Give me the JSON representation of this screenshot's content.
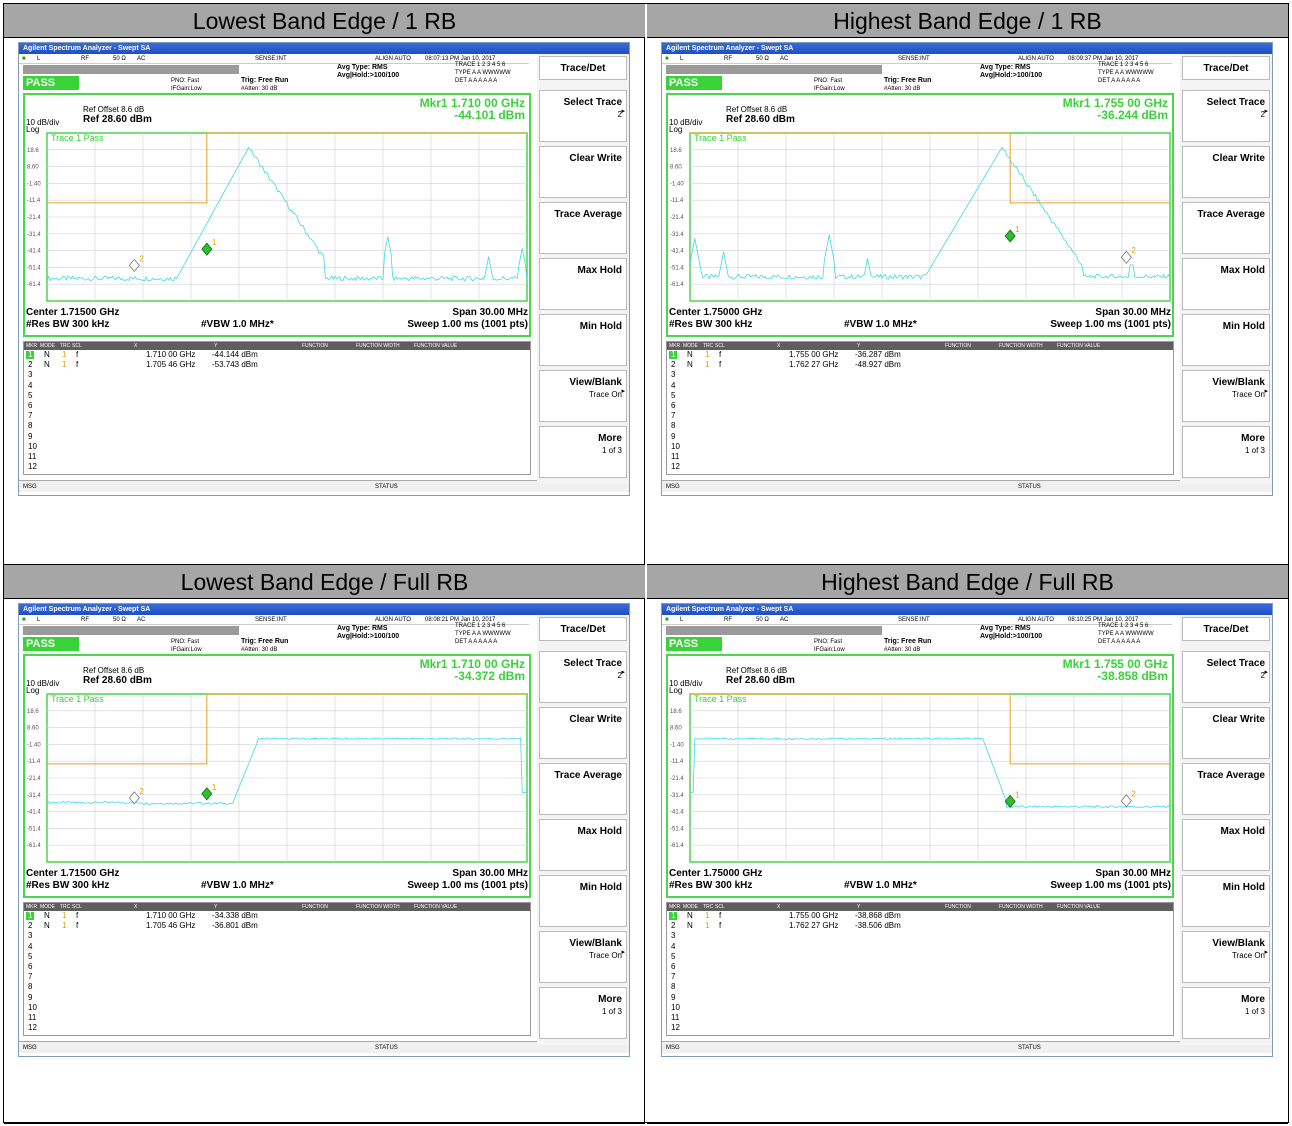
{
  "panels": [
    {
      "header": "Lowest Band Edge / 1 RB",
      "window_title": "Agilent Spectrum Analyzer - Swept SA",
      "status": {
        "mode": "L",
        "rf": "RF",
        "imp": "50 Ω",
        "coupling": "AC",
        "sense": "SENSE:INT",
        "align": "ALIGN AUTO",
        "time": "08:07:13 PM Jan 10, 2017"
      },
      "pass_label": "PASS",
      "pno": "PNO: Fast",
      "ifgain": "IFGain:Low",
      "trig": "Trig: Free Run",
      "atten": "#Atten: 30 dB",
      "avg_type": "Avg Type: RMS",
      "avg_hold": "Avg|Hold:>100/100",
      "trace_row": "TRACE 1 2 3 4 5 6",
      "type_row": "TYPE A A WWWWW",
      "det_row": "DET A A A A A A",
      "ref_offset": "Ref Offset 8.6 dB",
      "ref": "Ref 28.60 dBm",
      "scale": "10 dB/div",
      "log": "Log",
      "trace_pass": "Trace 1 Pass",
      "mkr_freq": "Mkr1 1.710 00 GHz",
      "mkr_amp": "-44.101 dBm",
      "center": "Center 1.71500 GHz",
      "span": "Span 30.00 MHz",
      "res_bw": "#Res BW 300 kHz",
      "vbw": "#VBW 1.0 MHz*",
      "sweep": "Sweep  1.00 ms (1001 pts)",
      "markers": [
        {
          "n": "1",
          "mode": "N",
          "trc": "1",
          "scl": "f",
          "x": "1.710 00 GHz",
          "y": "-44.144 dBm"
        },
        {
          "n": "2",
          "mode": "N",
          "trc": "1",
          "scl": "f",
          "x": "1.705 46 GHz",
          "y": "-53.743 dBm"
        }
      ],
      "trace_type": "narrow_low"
    },
    {
      "header": "Highest Band Edge / 1 RB",
      "window_title": "Agilent Spectrum Analyzer - Swept SA",
      "status": {
        "mode": "L",
        "rf": "RF",
        "imp": "50 Ω",
        "coupling": "AC",
        "sense": "SENSE:INT",
        "align": "ALIGN AUTO",
        "time": "08:09:37 PM Jan 10, 2017"
      },
      "pass_label": "PASS",
      "pno": "PNO: Fast",
      "ifgain": "IFGain:Low",
      "trig": "Trig: Free Run",
      "atten": "#Atten: 30 dB",
      "avg_type": "Avg Type: RMS",
      "avg_hold": "Avg|Hold:>100/100",
      "trace_row": "TRACE 1 2 3 4 5 6",
      "type_row": "TYPE A A WWWWW",
      "det_row": "DET A A A A A A",
      "ref_offset": "Ref Offset 8.6 dB",
      "ref": "Ref 28.60 dBm",
      "scale": "10 dB/div",
      "log": "Log",
      "trace_pass": "Trace 1 Pass",
      "mkr_freq": "Mkr1 1.755 00 GHz",
      "mkr_amp": "-36.244 dBm",
      "center": "Center 1.75000 GHz",
      "span": "Span 30.00 MHz",
      "res_bw": "#Res BW 300 kHz",
      "vbw": "#VBW 1.0 MHz*",
      "sweep": "Sweep  1.00 ms (1001 pts)",
      "markers": [
        {
          "n": "1",
          "mode": "N",
          "trc": "1",
          "scl": "f",
          "x": "1.755 00 GHz",
          "y": "-36.287 dBm"
        },
        {
          "n": "2",
          "mode": "N",
          "trc": "1",
          "scl": "f",
          "x": "1.762 27 GHz",
          "y": "-48.927 dBm"
        }
      ],
      "trace_type": "narrow_high"
    },
    {
      "header": "Lowest Band Edge / Full RB",
      "window_title": "Agilent Spectrum Analyzer - Swept SA",
      "status": {
        "mode": "L",
        "rf": "RF",
        "imp": "50 Ω",
        "coupling": "AC",
        "sense": "SENSE:INT",
        "align": "ALIGN AUTO",
        "time": "08:08:21 PM Jan 10, 2017"
      },
      "pass_label": "PASS",
      "pno": "PNO: Fast",
      "ifgain": "IFGain:Low",
      "trig": "Trig: Free Run",
      "atten": "#Atten: 30 dB",
      "avg_type": "Avg Type: RMS",
      "avg_hold": "Avg|Hold:>100/100",
      "trace_row": "TRACE 1 2 3 4 5 6",
      "type_row": "TYPE A A WWWWW",
      "det_row": "DET A A A A A A",
      "ref_offset": "Ref Offset 8.6 dB",
      "ref": "Ref 28.60 dBm",
      "scale": "10 dB/div",
      "log": "Log",
      "trace_pass": "Trace 1 Pass",
      "mkr_freq": "Mkr1 1.710 00 GHz",
      "mkr_amp": "-34.372 dBm",
      "center": "Center 1.71500 GHz",
      "span": "Span 30.00 MHz",
      "res_bw": "#Res BW 300 kHz",
      "vbw": "#VBW 1.0 MHz*",
      "sweep": "Sweep  1.00 ms (1001 pts)",
      "markers": [
        {
          "n": "1",
          "mode": "N",
          "trc": "1",
          "scl": "f",
          "x": "1.710 00 GHz",
          "y": "-34.338 dBm"
        },
        {
          "n": "2",
          "mode": "N",
          "trc": "1",
          "scl": "f",
          "x": "1.705 46 GHz",
          "y": "-36.801 dBm"
        }
      ],
      "trace_type": "wide_low"
    },
    {
      "header": "Highest Band Edge / Full RB",
      "window_title": "Agilent Spectrum Analyzer - Swept SA",
      "status": {
        "mode": "L",
        "rf": "RF",
        "imp": "50 Ω",
        "coupling": "AC",
        "sense": "SENSE:INT",
        "align": "ALIGN AUTO",
        "time": "08:10:25 PM Jan 10, 2017"
      },
      "pass_label": "PASS",
      "pno": "PNO: Fast",
      "ifgain": "IFGain:Low",
      "trig": "Trig: Free Run",
      "atten": "#Atten: 30 dB",
      "avg_type": "Avg Type: RMS",
      "avg_hold": "Avg|Hold:>100/100",
      "trace_row": "TRACE 1 2 3 4 5 6",
      "type_row": "TYPE A A WWWWW",
      "det_row": "DET A A A A A A",
      "ref_offset": "Ref Offset 8.6 dB",
      "ref": "Ref 28.60 dBm",
      "scale": "10 dB/div",
      "log": "Log",
      "trace_pass": "Trace 1 Pass",
      "mkr_freq": "Mkr1 1.755 00 GHz",
      "mkr_amp": "-38.858 dBm",
      "center": "Center 1.75000 GHz",
      "span": "Span 30.00 MHz",
      "res_bw": "#Res BW 300 kHz",
      "vbw": "#VBW 1.0 MHz*",
      "sweep": "Sweep  1.00 ms (1001 pts)",
      "markers": [
        {
          "n": "1",
          "mode": "N",
          "trc": "1",
          "scl": "f",
          "x": "1.755 00 GHz",
          "y": "-38.868 dBm"
        },
        {
          "n": "2",
          "mode": "N",
          "trc": "1",
          "scl": "f",
          "x": "1.762 27 GHz",
          "y": "-38.506 dBm"
        }
      ],
      "trace_type": "wide_high"
    }
  ],
  "y_ticks": [
    "18.6",
    "8.60",
    "-1.40",
    "-11.4",
    "-21.4",
    "-31.4",
    "-41.4",
    "-51.4",
    "-61.4"
  ],
  "table_headers": [
    "MKR",
    "MODE",
    "TRC",
    "SCL",
    "X",
    "Y",
    "FUNCTION",
    "FUNCTION WIDTH",
    "FUNCTION VALUE"
  ],
  "row_numbers": [
    "1",
    "2",
    "3",
    "4",
    "5",
    "6",
    "7",
    "8",
    "9",
    "10",
    "11",
    "12"
  ],
  "msg_label": "MSG",
  "status_label": "STATUS",
  "softkeys": [
    {
      "label": "Trace/Det",
      "sub": ""
    },
    {
      "label": "Select Trace",
      "sub": "2"
    },
    {
      "label": "Clear Write",
      "sub": ""
    },
    {
      "label": "Trace Average",
      "sub": ""
    },
    {
      "label": "Max Hold",
      "sub": ""
    },
    {
      "label": "Min Hold",
      "sub": ""
    },
    {
      "label": "View/Blank",
      "sub": "Trace On"
    },
    {
      "label": "More",
      "sub": "1 of 3"
    }
  ],
  "colors": {
    "trace": "#3fd9e6",
    "limit": "#f0a020",
    "plot_border": "#4bd64b",
    "pass_bg": "#39d339",
    "header_bg": "#a6a6a6"
  }
}
